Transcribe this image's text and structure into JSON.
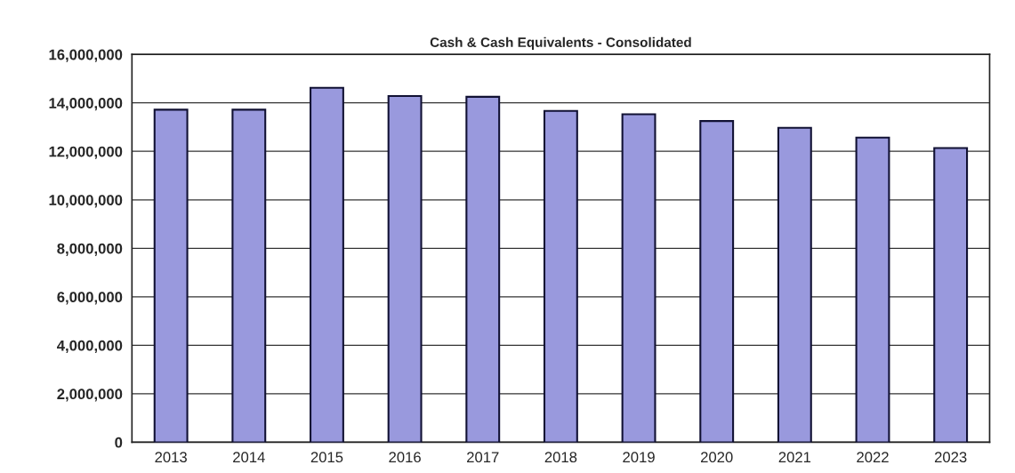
{
  "chart_data": {
    "type": "bar",
    "title": "Cash & Cash Equivalents - Consolidated",
    "categories": [
      "2013",
      "2014",
      "2015",
      "2016",
      "2017",
      "2018",
      "2019",
      "2020",
      "2021",
      "2022",
      "2023"
    ],
    "values": [
      13720000,
      13720000,
      14620000,
      14280000,
      14250000,
      13670000,
      13530000,
      13250000,
      12970000,
      12570000,
      12140000
    ],
    "color": "#9999dd",
    "ylim": [
      0,
      16000000
    ],
    "yticks": [
      {
        "value": 0,
        "label": "0"
      },
      {
        "value": 2000000,
        "label": "2,000,000"
      },
      {
        "value": 4000000,
        "label": "4,000,000"
      },
      {
        "value": 6000000,
        "label": "6,000,000"
      },
      {
        "value": 8000000,
        "label": "8,000,000"
      },
      {
        "value": 10000000,
        "label": "10,000,000"
      },
      {
        "value": 12000000,
        "label": "12,000,000"
      },
      {
        "value": 14000000,
        "label": "14,000,000"
      },
      {
        "value": 16000000,
        "label": "16,000,000"
      }
    ],
    "grid": "y"
  }
}
